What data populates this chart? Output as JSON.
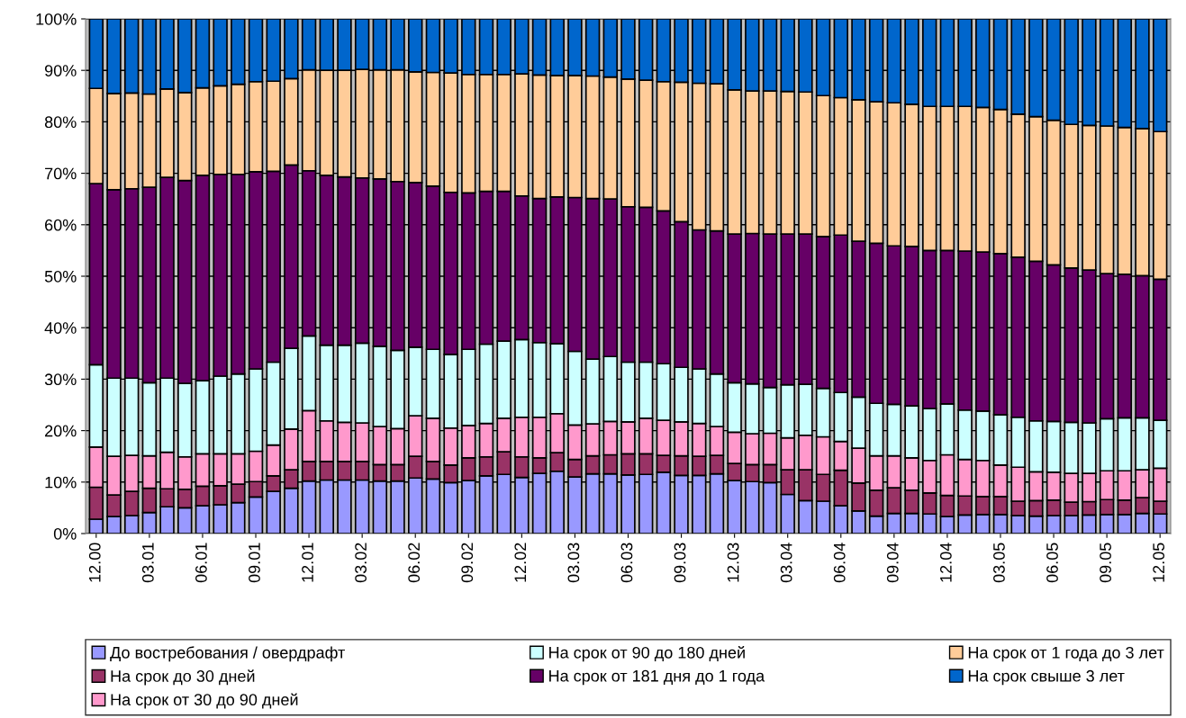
{
  "chart_data": {
    "type": "bar",
    "stacked": true,
    "categories": [
      "12.00",
      null,
      null,
      "03.01",
      null,
      null,
      "06.01",
      null,
      null,
      "09.01",
      null,
      null,
      "12.01",
      null,
      null,
      "03.02",
      null,
      null,
      "06.02",
      null,
      null,
      "09.02",
      null,
      null,
      "12.02",
      null,
      null,
      "03.03",
      null,
      null,
      "06.03",
      null,
      null,
      "09.03",
      null,
      null,
      "12.03",
      null,
      null,
      "03.04",
      null,
      null,
      "06.04",
      null,
      null,
      "09.04",
      null,
      null,
      "12.04",
      null,
      null,
      "03.05",
      null,
      null,
      "06.05",
      null,
      null,
      "09.05",
      null,
      null,
      "12.05"
    ],
    "series": [
      {
        "name": "До востребования / овердрафт",
        "color": "#9999ff",
        "values": [
          2.8,
          3.3,
          3.5,
          4.1,
          5.2,
          5.0,
          5.4,
          5.6,
          6.0,
          7.1,
          8.2,
          8.8,
          10.2,
          10.4,
          10.4,
          10.4,
          10.2,
          10.2,
          10.8,
          10.6,
          9.9,
          10.3,
          11.2,
          11.5,
          10.9,
          11.7,
          12.1,
          11.0,
          11.6,
          11.6,
          11.4,
          11.5,
          11.9,
          11.3,
          11.3,
          11.6,
          10.3,
          10.1,
          9.9,
          7.6,
          6.4,
          6.3,
          5.4,
          4.4,
          3.4,
          3.9,
          3.9,
          3.8,
          3.3,
          3.6,
          3.7,
          3.7,
          3.5,
          3.4,
          3.5,
          3.5,
          3.6,
          3.7,
          3.7,
          3.9,
          3.8
        ]
      },
      {
        "name": "На срок до 30 дней",
        "color": "#993366",
        "values": [
          6.2,
          4.2,
          4.7,
          4.7,
          3.5,
          3.6,
          3.8,
          3.7,
          3.6,
          3.0,
          3.0,
          3.6,
          3.8,
          3.6,
          3.6,
          3.6,
          3.2,
          3.2,
          4.2,
          3.4,
          3.4,
          4.4,
          3.7,
          4.4,
          4.0,
          3.0,
          3.6,
          3.4,
          3.5,
          3.7,
          4.1,
          4.0,
          3.3,
          3.8,
          3.7,
          3.6,
          3.3,
          3.3,
          3.5,
          4.8,
          6.0,
          5.2,
          6.9,
          5.4,
          5.0,
          5.0,
          4.5,
          4.1,
          4.1,
          3.7,
          3.5,
          3.5,
          2.8,
          3.0,
          3.0,
          2.6,
          2.6,
          2.9,
          2.8,
          3.1,
          2.5
        ]
      },
      {
        "name": "На срок от 30 до 90 дней",
        "color": "#ff99cc",
        "values": [
          7.8,
          7.5,
          7.0,
          6.3,
          7.1,
          6.3,
          6.3,
          6.2,
          5.9,
          5.9,
          6.0,
          7.9,
          9.9,
          7.9,
          7.6,
          7.5,
          7.4,
          7.0,
          7.9,
          8.4,
          7.2,
          6.3,
          6.5,
          6.5,
          7.7,
          7.9,
          7.6,
          6.7,
          6.2,
          6.5,
          6.2,
          6.9,
          6.8,
          6.6,
          6.4,
          5.6,
          6.1,
          6.0,
          6.1,
          6.2,
          6.7,
          7.3,
          5.6,
          6.8,
          6.7,
          6.2,
          6.3,
          6.3,
          7.9,
          7.1,
          7.0,
          6.1,
          6.6,
          5.6,
          5.4,
          5.6,
          5.5,
          5.6,
          5.7,
          5.4,
          6.4
        ]
      },
      {
        "name": "На срок от 90 до 180 дней",
        "color": "#ccffff",
        "values": [
          16.0,
          15.2,
          15.0,
          14.2,
          14.4,
          14.3,
          14.2,
          15.1,
          15.5,
          16.0,
          16.1,
          15.7,
          14.5,
          14.7,
          15.0,
          15.5,
          15.6,
          15.2,
          13.3,
          13.4,
          14.3,
          14.8,
          15.4,
          15.0,
          15.1,
          14.5,
          13.6,
          14.3,
          12.6,
          12.6,
          11.6,
          10.9,
          11.0,
          10.6,
          10.6,
          10.2,
          9.6,
          9.7,
          8.9,
          10.3,
          9.9,
          9.4,
          9.5,
          9.9,
          10.2,
          10.0,
          10.1,
          10.1,
          9.9,
          9.6,
          9.6,
          9.8,
          9.7,
          9.9,
          9.9,
          9.9,
          9.8,
          10.1,
          10.3,
          10.1,
          9.3
        ]
      },
      {
        "name": "На срок от 181 дня до 1 года",
        "color": "#660066",
        "values": [
          35.2,
          36.6,
          36.8,
          38.0,
          39.0,
          39.4,
          39.9,
          39.2,
          38.8,
          38.3,
          37.1,
          35.6,
          32.1,
          33.0,
          32.7,
          32.1,
          32.5,
          32.8,
          32.0,
          31.7,
          31.5,
          30.4,
          29.7,
          29.1,
          27.9,
          28.0,
          28.5,
          29.9,
          31.2,
          30.6,
          30.2,
          30.1,
          29.7,
          28.3,
          27.0,
          27.8,
          28.9,
          29.2,
          29.8,
          29.3,
          29.2,
          29.5,
          30.6,
          30.3,
          31.1,
          30.8,
          31.0,
          30.7,
          29.8,
          30.9,
          30.9,
          31.3,
          31.1,
          31.0,
          30.4,
          30.0,
          29.7,
          28.2,
          27.9,
          27.6,
          27.4
        ]
      },
      {
        "name": "На срок от 1 года до 3 лет",
        "color": "#ffcc99",
        "values": [
          18.5,
          18.7,
          18.6,
          18.1,
          17.2,
          17.1,
          17.0,
          17.2,
          17.5,
          17.5,
          17.5,
          16.8,
          19.6,
          20.4,
          20.7,
          21.1,
          21.2,
          21.7,
          21.5,
          22.1,
          23.2,
          23.0,
          22.7,
          22.7,
          23.7,
          24.0,
          23.6,
          23.7,
          23.8,
          23.7,
          24.8,
          24.7,
          25.1,
          27.1,
          28.5,
          28.6,
          28.0,
          27.7,
          27.8,
          27.7,
          27.6,
          27.4,
          26.7,
          27.5,
          27.5,
          27.8,
          27.6,
          28.0,
          28.0,
          28.1,
          28.1,
          28.0,
          27.8,
          28.1,
          28.1,
          27.9,
          28.1,
          28.7,
          28.5,
          28.6,
          28.7
        ]
      },
      {
        "name": "На срок свыше 3 лет",
        "color": "#0066cc",
        "values": [
          13.5,
          14.5,
          14.4,
          14.6,
          13.6,
          14.3,
          13.4,
          13.0,
          12.7,
          12.2,
          12.1,
          11.6,
          9.9,
          10.0,
          10.0,
          9.8,
          9.9,
          9.9,
          10.3,
          10.4,
          10.5,
          10.8,
          10.8,
          10.8,
          10.7,
          10.9,
          11.0,
          11.0,
          11.1,
          11.3,
          11.7,
          11.9,
          12.2,
          12.3,
          12.5,
          12.6,
          13.8,
          14.0,
          14.0,
          14.1,
          14.2,
          14.9,
          15.3,
          15.7,
          16.1,
          16.3,
          16.6,
          17.0,
          17.0,
          17.0,
          17.2,
          17.6,
          18.5,
          19.0,
          19.7,
          20.5,
          20.7,
          20.8,
          21.1,
          21.3,
          21.9
        ]
      }
    ],
    "ylim": [
      0,
      100
    ],
    "yticks": [
      {
        "value": 0,
        "label": "0%"
      },
      {
        "value": 10,
        "label": "10%"
      },
      {
        "value": 20,
        "label": "20%"
      },
      {
        "value": 30,
        "label": "30%"
      },
      {
        "value": 40,
        "label": "40%"
      },
      {
        "value": 50,
        "label": "50%"
      },
      {
        "value": 60,
        "label": "60%"
      },
      {
        "value": 70,
        "label": "70%"
      },
      {
        "value": 80,
        "label": "80%"
      },
      {
        "value": 90,
        "label": "90%"
      },
      {
        "value": 100,
        "label": "100%"
      }
    ],
    "grid": "y",
    "legend": "bottom"
  }
}
